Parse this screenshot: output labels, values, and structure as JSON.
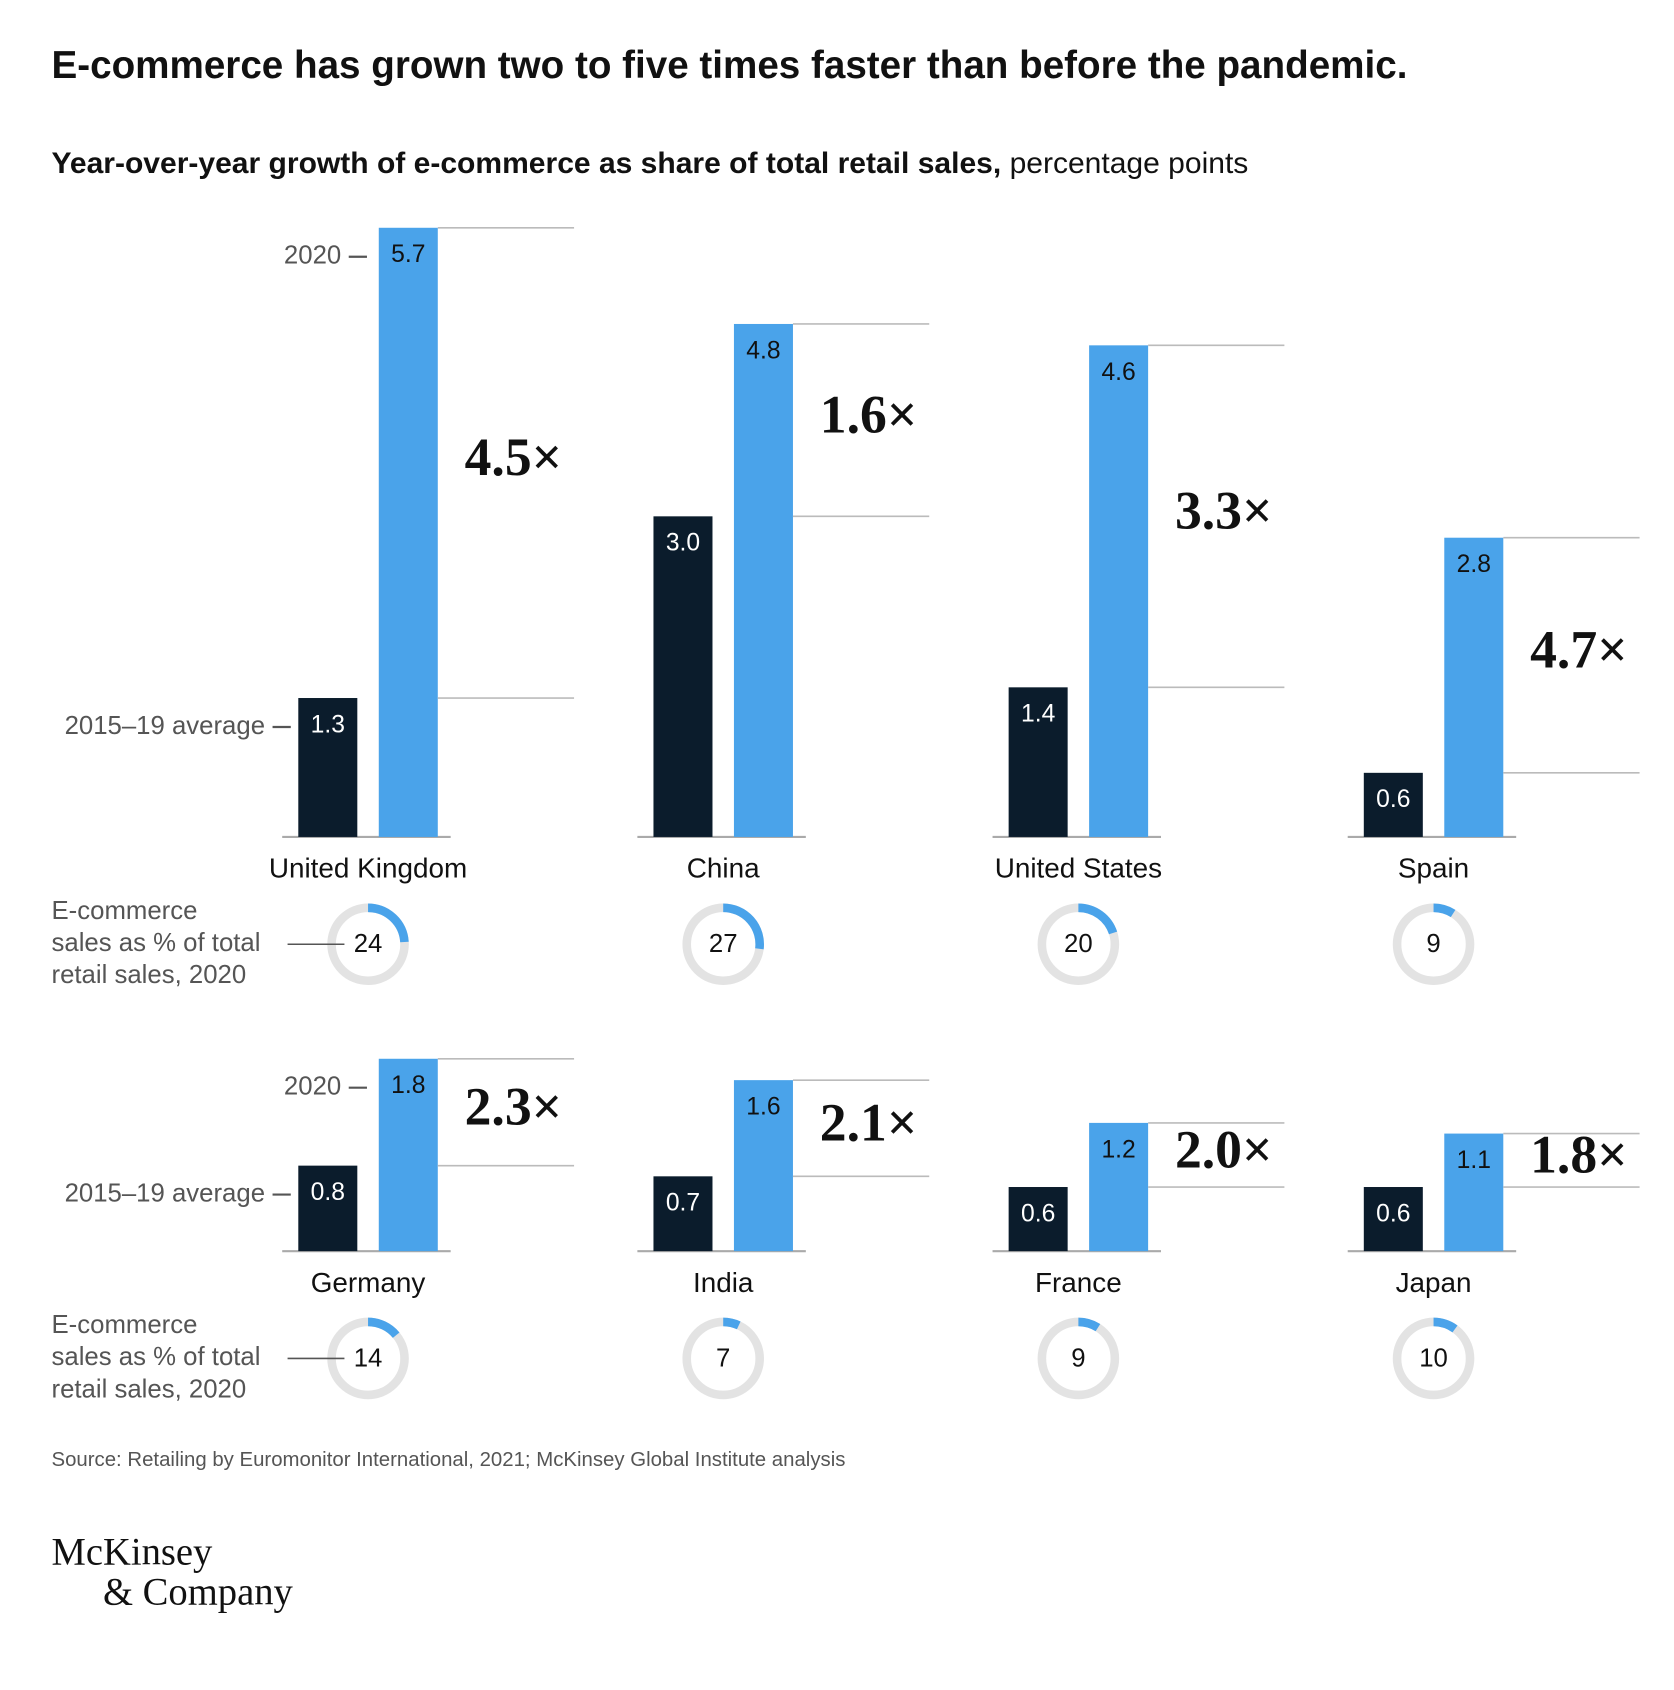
{
  "title": "E-commerce has grown two to five times faster than before the pandemic.",
  "subtitle": {
    "bold": "Year-over-year growth of e-commerce as share of total retail sales,",
    "rest": "percentage points"
  },
  "source": "Source: Retailing by Euromonitor International, 2021; McKinsey Global Institute analysis",
  "logo": [
    "McKinsey",
    "& Company"
  ],
  "chart_data": [
    {
      "type": "grouped-bar",
      "categories": [
        "United Kingdom",
        "China",
        "United States",
        "Spain"
      ],
      "series": [
        {
          "name": "2015–19 average",
          "color": "#0b1c2c",
          "values": [
            1.3,
            3.0,
            1.4,
            0.6
          ],
          "value_labels": [
            "1.3",
            "3.0",
            "1.4",
            "0.6"
          ]
        },
        {
          "name": "2020",
          "color": "#4aa3ea",
          "values": [
            5.7,
            4.8,
            4.6,
            2.8
          ],
          "value_labels": [
            "5.7",
            "4.8",
            "4.6",
            "2.8"
          ]
        }
      ],
      "multipliers": [
        "4.5×",
        "1.6×",
        "3.3×",
        "4.7×"
      ],
      "donut": {
        "label": [
          "E-commerce",
          "sales as % of total",
          "retail sales, 2020"
        ],
        "color": "#4aa3ea",
        "values": [
          24,
          27,
          20,
          9
        ]
      }
    },
    {
      "type": "grouped-bar",
      "categories": [
        "Germany",
        "India",
        "France",
        "Japan"
      ],
      "series": [
        {
          "name": "2015–19 average",
          "color": "#0b1c2c",
          "values": [
            0.8,
            0.7,
            0.6,
            0.6
          ],
          "value_labels": [
            "0.8",
            "0.7",
            "0.6",
            "0.6"
          ]
        },
        {
          "name": "2020",
          "color": "#4aa3ea",
          "values": [
            1.8,
            1.6,
            1.2,
            1.1
          ],
          "value_labels": [
            "1.8",
            "1.6",
            "1.2",
            "1.1"
          ]
        }
      ],
      "multipliers": [
        "2.3×",
        "2.1×",
        "2.0×",
        "1.8×"
      ],
      "donut": {
        "label": [
          "E-commerce",
          "sales as % of total",
          "retail sales, 2020"
        ],
        "color": "#4aa3ea",
        "values": [
          14,
          7,
          9,
          10
        ]
      }
    }
  ]
}
